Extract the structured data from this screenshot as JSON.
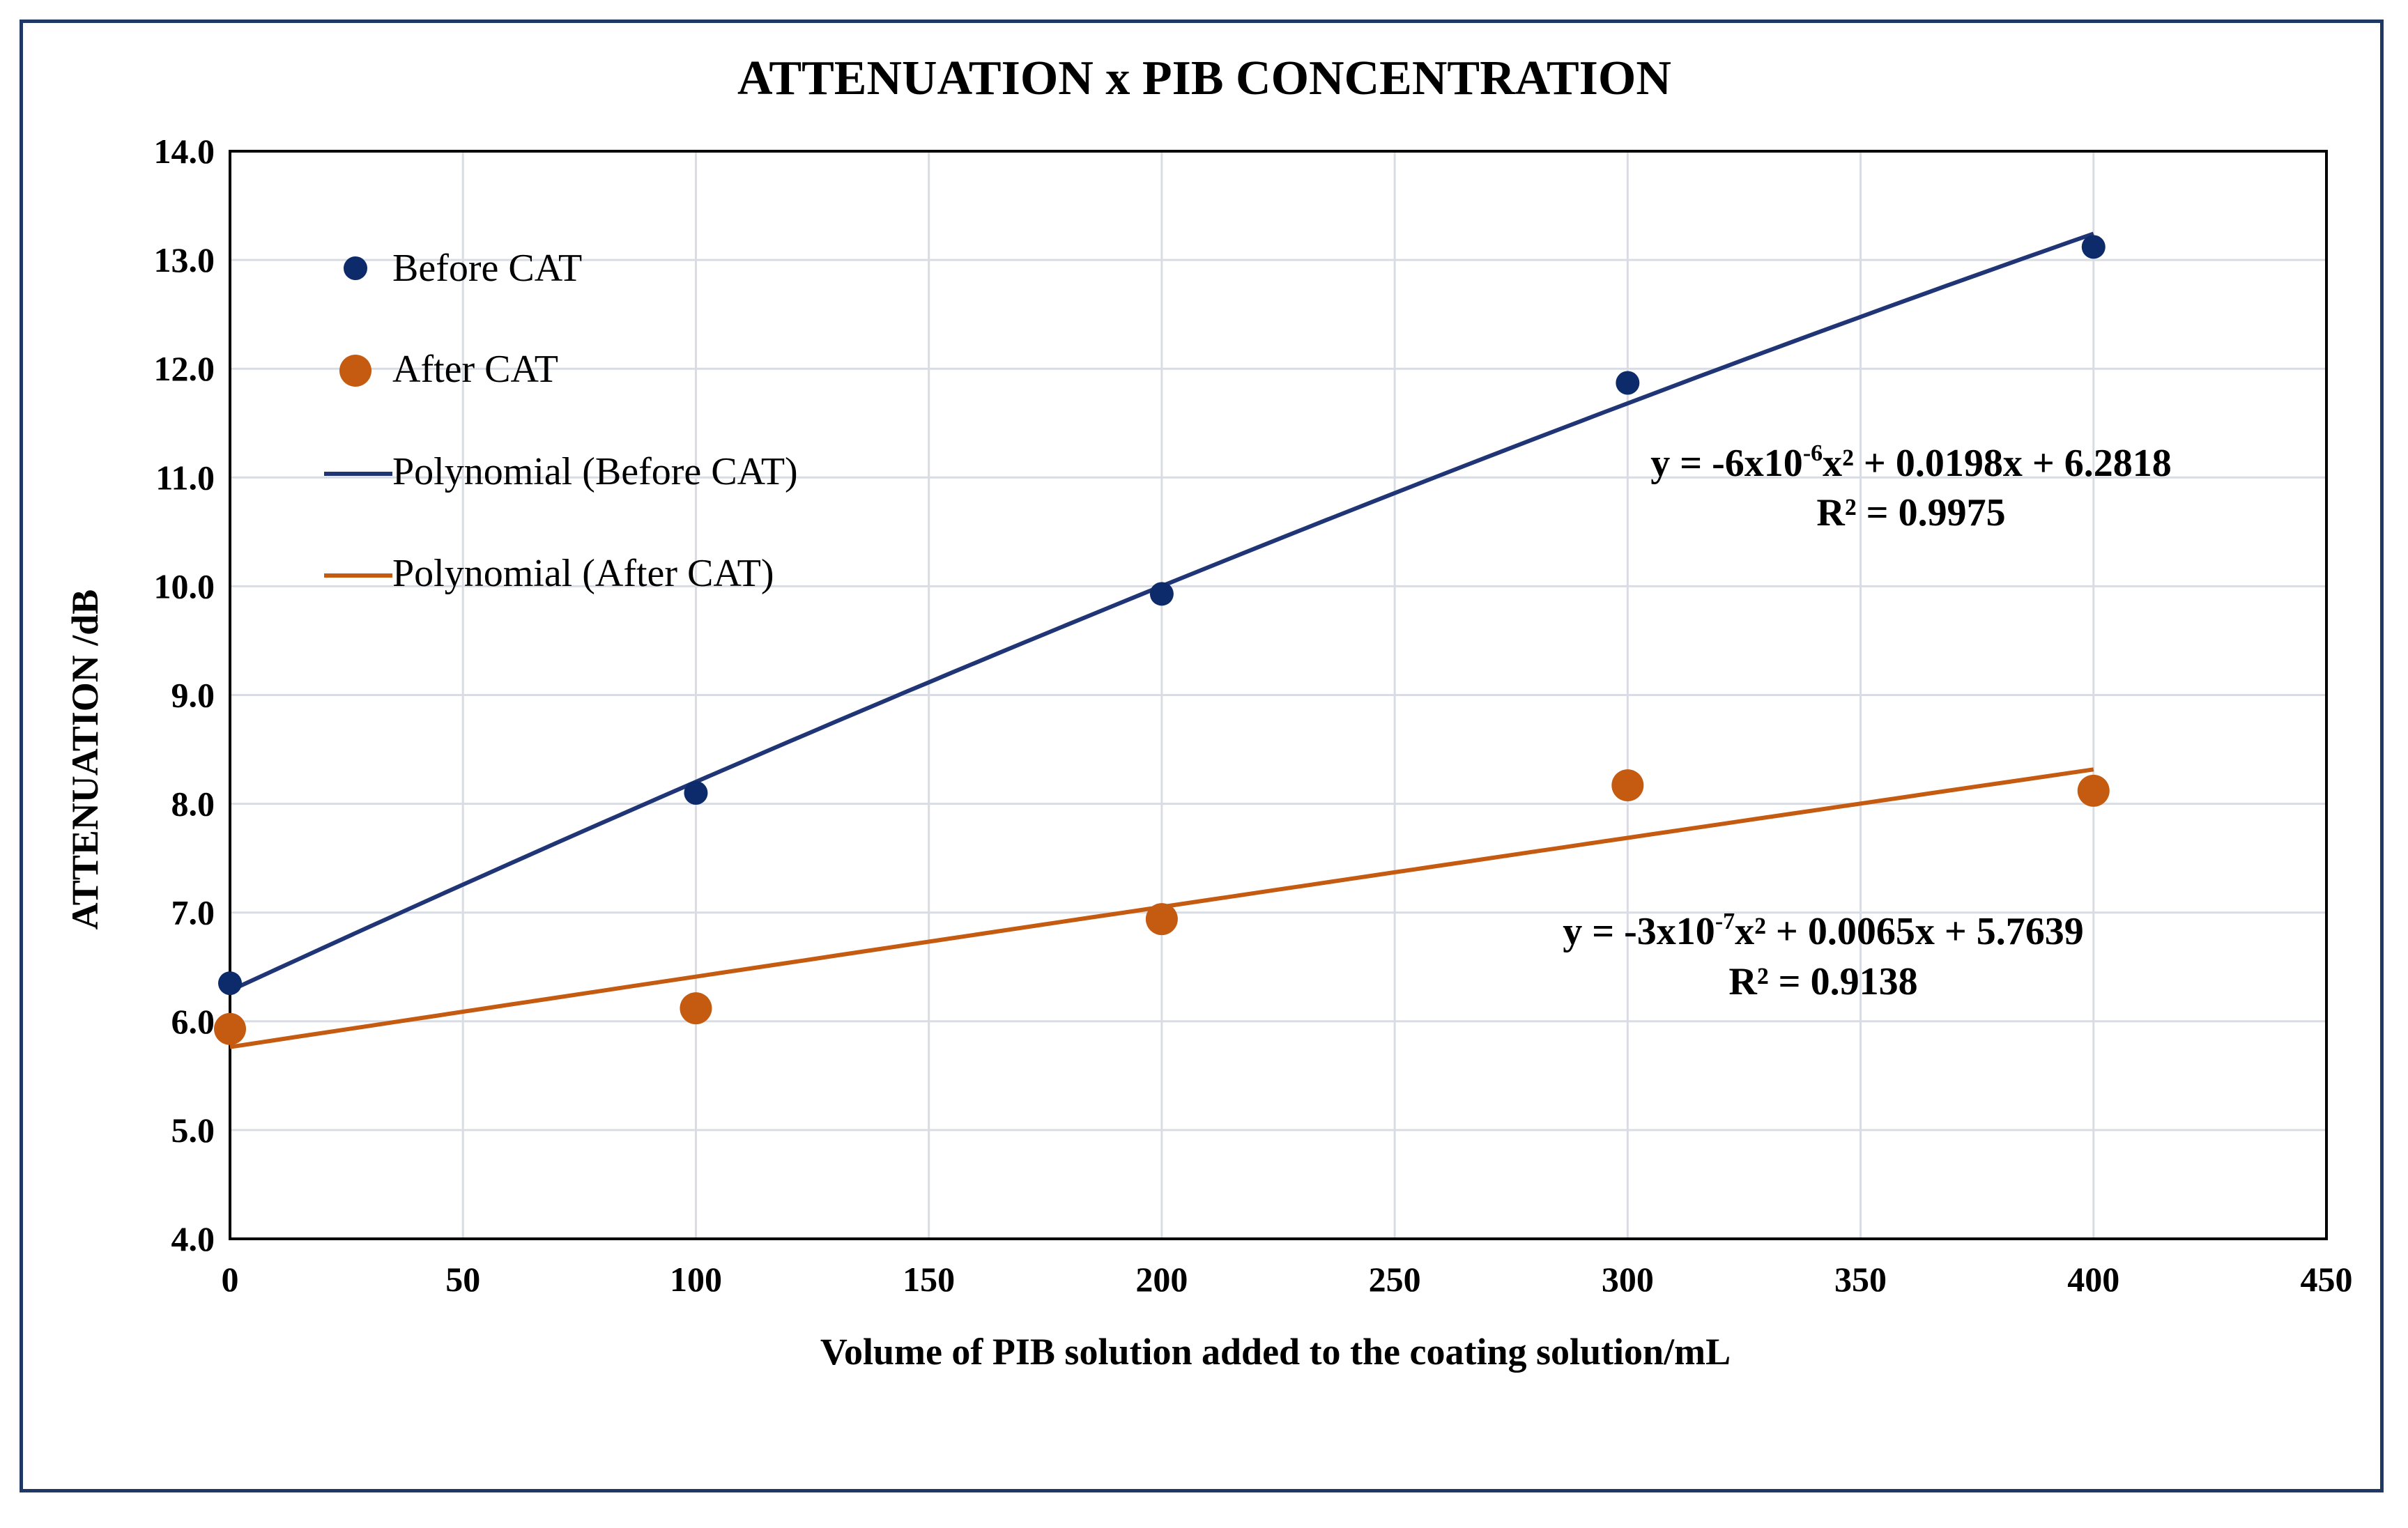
{
  "chart_data": {
    "type": "scatter",
    "title": "ATTENUATION x PIB CONCENTRATION",
    "xlabel": "Volume of PIB solution added to the coating solution/mL",
    "ylabel": "ATTENUATION /dB",
    "xlim": [
      0,
      450
    ],
    "ylim": [
      4.0,
      14.0
    ],
    "x_ticks": [
      "0",
      "50",
      "100",
      "150",
      "200",
      "250",
      "300",
      "350",
      "400",
      "450"
    ],
    "y_ticks": [
      "4.0",
      "5.0",
      "6.0",
      "7.0",
      "8.0",
      "9.0",
      "10.0",
      "11.0",
      "12.0",
      "13.0",
      "14.0"
    ],
    "grid": true,
    "legend_position": "top-left",
    "series": [
      {
        "name": "Before CAT",
        "color": "#0d2a6b",
        "x": [
          0,
          100,
          200,
          300,
          400
        ],
        "y": [
          6.35,
          8.1,
          9.93,
          11.87,
          13.12
        ]
      },
      {
        "name": "After CAT",
        "color": "#c55a11",
        "x": [
          0,
          100,
          200,
          300,
          400
        ],
        "y": [
          5.93,
          6.12,
          6.94,
          8.17,
          8.12
        ]
      }
    ],
    "trendlines": [
      {
        "name": "Polynomial (Before CAT)",
        "color": "#1f3575",
        "coefficients": {
          "a": -6e-06,
          "b": 0.0198,
          "c": 6.2818
        },
        "x_range": [
          0,
          400
        ],
        "equation": "y = -6x10",
        "equation_exp": "-6",
        "equation_rest": "x² + 0.0198x + 6.2818",
        "r_squared": "R² = 0.9975"
      },
      {
        "name": "Polynomial (After CAT)",
        "color": "#c55a11",
        "coefficients": {
          "a": -3e-07,
          "b": 0.0065,
          "c": 5.7639
        },
        "x_range": [
          0,
          400
        ],
        "equation": "y = -3x10",
        "equation_exp": "-7",
        "equation_rest": "x² + 0.0065x + 5.7639",
        "r_squared": "R² = 0.9138"
      }
    ]
  }
}
